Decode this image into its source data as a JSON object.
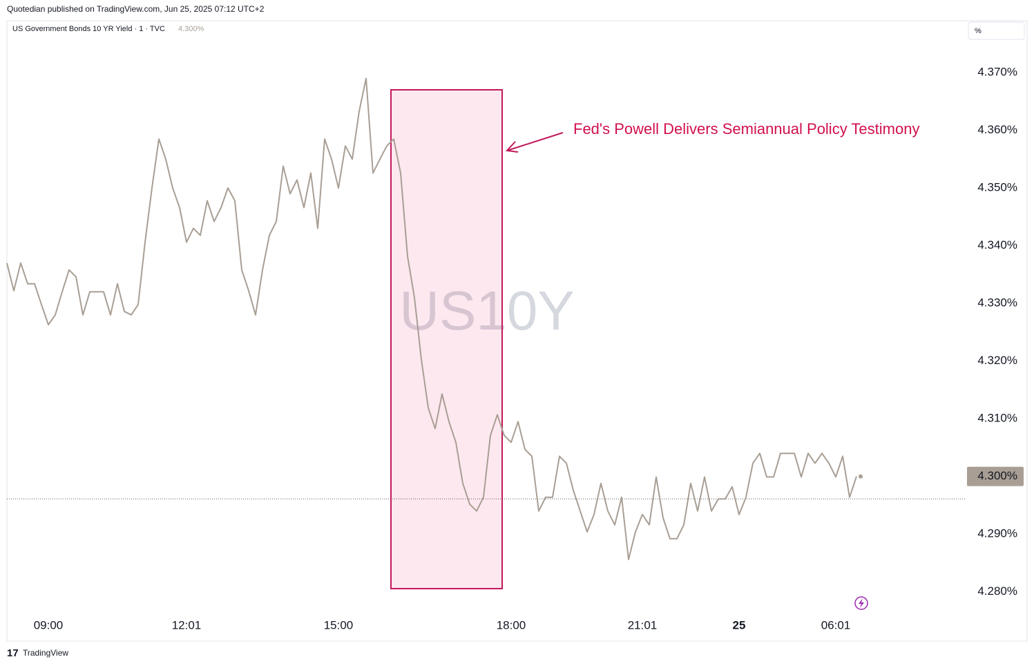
{
  "chart_data": {
    "type": "line",
    "publisher_line": "Quotedian published on TradingView.com, Jun 25, 2025 07:12 UTC+2",
    "title": "US Government Bonds 10 YR Yield · 1 · TVC",
    "last_label": "4.300%",
    "scale_unit": "%",
    "watermark": "US10Y",
    "annotation": "Fed's Powell Delivers Semiannual Policy Testimony",
    "footer": "TradingView",
    "color": "#a89e94",
    "reference_line": 4.2961,
    "categories": [
      null,
      null,
      null,
      null,
      null,
      null,
      "09:00",
      null,
      null,
      null,
      null,
      null,
      null,
      null,
      null,
      null,
      null,
      null,
      null,
      null,
      null,
      null,
      null,
      null,
      null,
      null,
      "12:01",
      null,
      null,
      null,
      null,
      null,
      null,
      null,
      null,
      null,
      null,
      null,
      null,
      null,
      null,
      null,
      null,
      null,
      null,
      null,
      null,
      null,
      "15:00",
      null,
      null,
      null,
      null,
      null,
      null,
      null,
      null,
      null,
      null,
      null,
      null,
      null,
      null,
      null,
      null,
      null,
      null,
      null,
      null,
      null,
      null,
      null,
      null,
      "18:00",
      null,
      null,
      null,
      null,
      null,
      null,
      null,
      null,
      null,
      null,
      null,
      null,
      null,
      null,
      null,
      null,
      null,
      null,
      "21:01",
      null,
      null,
      null,
      null,
      null,
      null,
      null,
      null,
      null,
      null,
      null,
      null,
      null,
      "25",
      null,
      null,
      null,
      null,
      null,
      null,
      null,
      null,
      null,
      null,
      null,
      null,
      null,
      "06:01",
      null,
      null,
      null
    ],
    "values": [
      4.337,
      4.3322,
      4.337,
      4.3334,
      4.3334,
      4.3298,
      4.3263,
      4.328,
      4.332,
      4.3358,
      4.3346,
      4.328,
      4.332,
      4.332,
      4.332,
      4.328,
      4.3334,
      4.3286,
      4.328,
      4.3298,
      4.3406,
      4.35,
      4.3585,
      4.355,
      4.35,
      4.3466,
      4.3406,
      4.343,
      4.3418,
      4.3478,
      4.3442,
      4.3466,
      4.35,
      4.3478,
      4.3358,
      4.3322,
      4.328,
      4.3358,
      4.3418,
      4.3442,
      4.3538,
      4.349,
      4.3514,
      4.3466,
      4.3526,
      4.343,
      4.3585,
      4.355,
      4.35,
      4.3573,
      4.355,
      4.3633,
      4.369,
      4.3526,
      4.355,
      4.3573,
      4.3585,
      4.3526,
      4.3382,
      4.331,
      4.3203,
      4.3119,
      4.3083,
      4.3143,
      4.3095,
      4.3059,
      4.2988,
      4.2952,
      4.294,
      4.2964,
      4.3071,
      4.3107,
      4.3071,
      4.3059,
      4.3095,
      4.3047,
      4.3035,
      4.294,
      4.2964,
      4.2964,
      4.3035,
      4.3023,
      4.2976,
      4.294,
      4.2904,
      4.2934,
      4.2988,
      4.294,
      4.2916,
      4.2964,
      4.2856,
      4.2904,
      4.2934,
      4.2916,
      4.2999,
      4.2928,
      4.2892,
      4.2892,
      4.2916,
      4.2988,
      4.294,
      4.2999,
      4.294,
      4.2961,
      4.2961,
      4.2982,
      4.2934,
      4.2964,
      4.3023,
      4.304,
      4.2999,
      4.2999,
      4.304,
      4.304,
      4.304,
      4.2999,
      4.304,
      4.3023,
      4.304,
      4.3023,
      4.2999,
      4.3035,
      4.2964,
      4.3
    ],
    "ylim": [
      4.276,
      4.379
    ],
    "yticks": [
      {
        "value": 4.28,
        "label": "4.280%"
      },
      {
        "value": 4.29,
        "label": "4.290%"
      },
      {
        "value": 4.3,
        "label": "4.300%"
      },
      {
        "value": 4.31,
        "label": "4.310%"
      },
      {
        "value": 4.32,
        "label": "4.320%"
      },
      {
        "value": 4.33,
        "label": "4.330%"
      },
      {
        "value": 4.34,
        "label": "4.340%"
      },
      {
        "value": 4.35,
        "label": "4.350%"
      },
      {
        "value": 4.36,
        "label": "4.360%"
      },
      {
        "value": 4.37,
        "label": "4.370%"
      }
    ],
    "grid": false
  }
}
